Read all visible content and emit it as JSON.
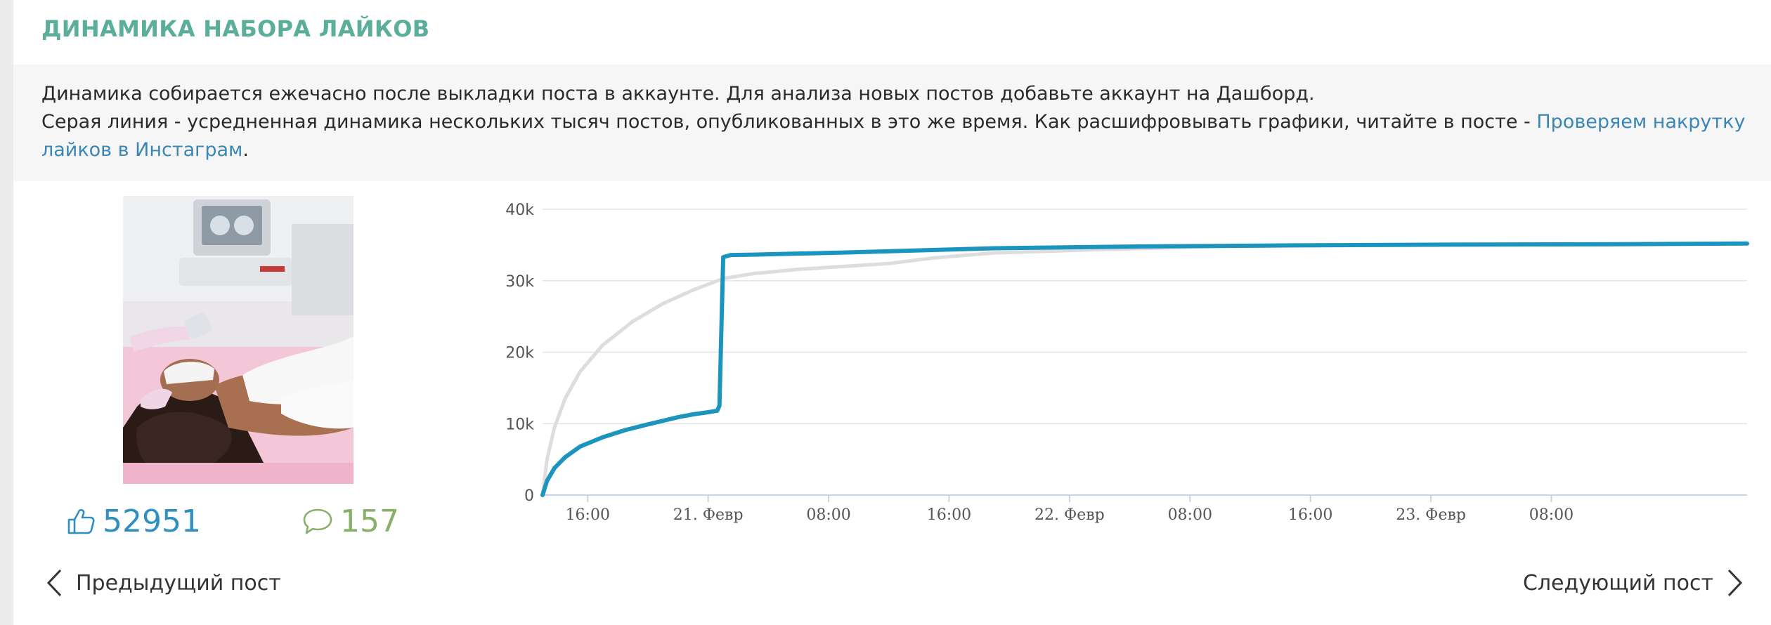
{
  "section": {
    "title": "ДИНАМИКА НАБОРА ЛАЙКОВ"
  },
  "info": {
    "line1": "Динамика собирается ежечасно после выкладки поста в аккаунте. Для анализа новых постов добавьте аккаунт на Дашборд.",
    "line2_text": "Серая линия - усредненная динамика нескольких тысяч постов, опубликованных в это же время. Как расшифровывать графики, читайте в посте - ",
    "line2_link": "Проверяем накрутку лайков в Инстаграм",
    "line2_end": "."
  },
  "post": {
    "likes": "52951",
    "comments": "157",
    "like_icon": "thumbs-up-icon",
    "comment_icon": "speech-bubble-icon"
  },
  "navigation": {
    "prev_label": "Предыдущий пост",
    "next_label": "Следующий пост"
  },
  "colors": {
    "title": "#5aae9a",
    "link": "#3a86b5",
    "series_post": "#1b95bd",
    "series_average": "#dddddd",
    "likes": "#2f8fc1",
    "comments": "#88b06a"
  },
  "chart_data": {
    "type": "line",
    "y_ticks": [
      "0",
      "10k",
      "20k",
      "30k",
      "40k"
    ],
    "ylim": [
      0,
      40000
    ],
    "x_ticks": [
      "16:00",
      "21. Февр",
      "08:00",
      "16:00",
      "22. Февр",
      "08:00",
      "16:00",
      "23. Февр",
      "08:00"
    ],
    "x_hours": "x values are hours after 20 Feb 13:00",
    "grid": true,
    "legend": "none",
    "series": [
      {
        "color": "#1b95bd",
        "x": [
          0,
          0.3,
          0.8,
          1.5,
          2.5,
          4,
          5.5,
          7,
          8,
          9,
          10,
          11,
          11.6,
          11.75,
          12,
          12.5,
          14,
          20,
          30,
          40,
          50,
          60,
          70,
          80
        ],
        "values": [
          0,
          2000,
          3800,
          5300,
          6800,
          8100,
          9100,
          9900,
          10400,
          10900,
          11300,
          11600,
          11800,
          12500,
          33300,
          33600,
          33650,
          33950,
          34550,
          34800,
          34950,
          35050,
          35100,
          35200
        ]
      },
      {
        "color": "#dddddd",
        "x": [
          0,
          0.3,
          0.8,
          1.5,
          2.5,
          4,
          6,
          8,
          10,
          12,
          14,
          17,
          20,
          23,
          26,
          30,
          36,
          45,
          55,
          65,
          80
        ],
        "values": [
          0,
          5000,
          9500,
          13500,
          17300,
          21000,
          24300,
          26800,
          28700,
          30300,
          31000,
          31600,
          32000,
          32400,
          33200,
          33900,
          34300,
          34800,
          35000,
          35100,
          35250
        ]
      }
    ]
  }
}
